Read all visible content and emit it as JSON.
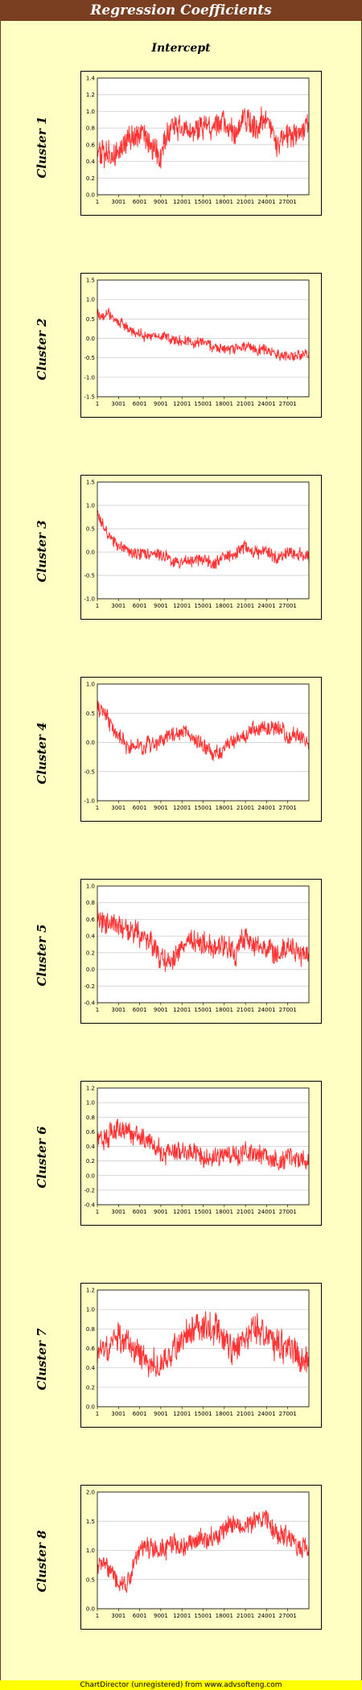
{
  "title": "Regression Coefficients",
  "subtitle": "Intercept",
  "footer": "ChartDirector (unregistered) from www.advsofteng.com",
  "colors": {
    "line": "#ff3333",
    "background": "#ffffc4",
    "title_bar": "#7a3e20",
    "footer": "#ffff00"
  },
  "chart_data": [
    {
      "type": "line",
      "label": "Cluster 1",
      "ylim": [
        0.0,
        1.4
      ],
      "y_ticks": [
        "0.0",
        "0.2",
        "0.4",
        "0.6",
        "0.8",
        "1.0",
        "1.2",
        "1.4"
      ],
      "x_ticks": [
        "1",
        "3001",
        "6001",
        "9001",
        "12001",
        "15001",
        "18001",
        "21001",
        "24001",
        "27001"
      ],
      "xlim": [
        1,
        30000
      ],
      "grid": "horizontal",
      "x": [
        1,
        1500,
        3000,
        4500,
        6000,
        7500,
        9000,
        10500,
        12000,
        13500,
        15000,
        16500,
        18000,
        19500,
        21000,
        22500,
        24000,
        25500,
        27000,
        28500,
        30000
      ],
      "y": [
        0.5,
        0.45,
        0.55,
        0.65,
        0.7,
        0.6,
        0.5,
        0.85,
        0.8,
        0.75,
        0.8,
        0.8,
        0.85,
        0.75,
        0.95,
        0.8,
        0.95,
        0.6,
        0.7,
        0.75,
        0.85
      ],
      "band": 0.16
    },
    {
      "type": "line",
      "label": "Cluster 2",
      "ylim": [
        -1.5,
        1.5
      ],
      "y_ticks": [
        "-1.5",
        "-1.0",
        "-0.5",
        "0.0",
        "0.5",
        "1.0",
        "1.5"
      ],
      "x_ticks": [
        "1",
        "3001",
        "6001",
        "9001",
        "12001",
        "15001",
        "18001",
        "21001",
        "24001",
        "27001"
      ],
      "xlim": [
        1,
        30000
      ],
      "grid": "horizontal",
      "x": [
        1,
        1500,
        3000,
        4500,
        6000,
        7500,
        9000,
        10500,
        12000,
        13500,
        15000,
        16500,
        18000,
        19500,
        21000,
        22500,
        24000,
        25500,
        27000,
        28500,
        30000
      ],
      "y": [
        0.6,
        0.65,
        0.4,
        0.25,
        0.1,
        0.05,
        0.05,
        0.0,
        -0.05,
        -0.1,
        -0.1,
        -0.2,
        -0.3,
        -0.3,
        -0.2,
        -0.3,
        -0.3,
        -0.45,
        -0.45,
        -0.45,
        -0.4
      ],
      "band": 0.14
    },
    {
      "type": "line",
      "label": "Cluster 3",
      "ylim": [
        -1.0,
        1.5
      ],
      "y_ticks": [
        "-1.0",
        "-0.5",
        "0.0",
        "0.5",
        "1.0",
        "1.5"
      ],
      "x_ticks": [
        "1",
        "3001",
        "6001",
        "9001",
        "12001",
        "15001",
        "18001",
        "21001",
        "24001",
        "27001"
      ],
      "xlim": [
        1,
        30000
      ],
      "grid": "horizontal",
      "x": [
        1,
        1500,
        3000,
        4500,
        6000,
        7500,
        9000,
        10500,
        12000,
        13500,
        15000,
        16500,
        18000,
        19500,
        21000,
        22500,
        24000,
        25500,
        27000,
        28500,
        30000
      ],
      "y": [
        0.8,
        0.35,
        0.15,
        0.0,
        0.0,
        -0.05,
        -0.05,
        -0.15,
        -0.25,
        -0.2,
        -0.15,
        -0.25,
        -0.1,
        -0.05,
        0.1,
        0.0,
        0.05,
        -0.15,
        0.05,
        -0.05,
        -0.1
      ],
      "band": 0.14
    },
    {
      "type": "line",
      "label": "Cluster 4",
      "ylim": [
        -1.0,
        1.0
      ],
      "y_ticks": [
        "-1.0",
        "-0.5",
        "0.0",
        "0.5",
        "1.0"
      ],
      "x_ticks": [
        "1",
        "3001",
        "6001",
        "9001",
        "12001",
        "15001",
        "18001",
        "21001",
        "24001",
        "27001"
      ],
      "xlim": [
        1,
        30000
      ],
      "grid": "horizontal",
      "x": [
        1,
        1500,
        3000,
        4500,
        6000,
        7500,
        9000,
        10500,
        12000,
        13500,
        15000,
        16500,
        18000,
        19500,
        21000,
        22500,
        24000,
        25500,
        27000,
        28500,
        30000
      ],
      "y": [
        0.6,
        0.4,
        0.1,
        -0.1,
        -0.05,
        0.0,
        0.05,
        0.15,
        0.2,
        0.05,
        -0.05,
        -0.25,
        -0.05,
        0.05,
        0.15,
        0.2,
        0.25,
        0.25,
        0.15,
        0.1,
        0.0
      ],
      "band": 0.14
    },
    {
      "type": "line",
      "label": "Cluster 5",
      "ylim": [
        -0.4,
        1.0
      ],
      "y_ticks": [
        "-0.4",
        "-0.2",
        "0.0",
        "0.2",
        "0.4",
        "0.6",
        "0.8",
        "1.0"
      ],
      "x_ticks": [
        "1",
        "3001",
        "6001",
        "9001",
        "12001",
        "15001",
        "18001",
        "21001",
        "24001",
        "27001"
      ],
      "xlim": [
        1,
        30000
      ],
      "grid": "horizontal",
      "x": [
        1,
        1500,
        3000,
        4500,
        6000,
        7500,
        9000,
        10500,
        12000,
        13500,
        15000,
        16500,
        18000,
        19500,
        21000,
        22500,
        24000,
        25500,
        27000,
        28500,
        30000
      ],
      "y": [
        0.65,
        0.55,
        0.55,
        0.45,
        0.4,
        0.35,
        0.1,
        0.15,
        0.3,
        0.3,
        0.35,
        0.25,
        0.3,
        0.2,
        0.35,
        0.3,
        0.25,
        0.2,
        0.25,
        0.2,
        0.2
      ],
      "band": 0.15
    },
    {
      "type": "line",
      "label": "Cluster 6",
      "ylim": [
        -0.4,
        1.2
      ],
      "y_ticks": [
        "-0.4",
        "-0.2",
        "0.0",
        "0.2",
        "0.4",
        "0.6",
        "0.8",
        "1.0",
        "1.2"
      ],
      "x_ticks": [
        "1",
        "3001",
        "6001",
        "9001",
        "12001",
        "15001",
        "18001",
        "21001",
        "24001",
        "27001"
      ],
      "xlim": [
        1,
        30000
      ],
      "grid": "horizontal",
      "x": [
        1,
        1500,
        3000,
        4500,
        6000,
        7500,
        9000,
        10500,
        12000,
        13500,
        15000,
        16500,
        18000,
        19500,
        21000,
        22500,
        24000,
        25500,
        27000,
        28500,
        30000
      ],
      "y": [
        0.45,
        0.55,
        0.7,
        0.6,
        0.5,
        0.45,
        0.3,
        0.3,
        0.35,
        0.3,
        0.25,
        0.3,
        0.3,
        0.25,
        0.35,
        0.3,
        0.3,
        0.2,
        0.25,
        0.2,
        0.15
      ],
      "band": 0.15
    },
    {
      "type": "line",
      "label": "Cluster 7",
      "ylim": [
        0.0,
        1.2
      ],
      "y_ticks": [
        "0.0",
        "0.2",
        "0.4",
        "0.6",
        "0.8",
        "1.0",
        "1.2"
      ],
      "x_ticks": [
        "1",
        "3001",
        "6001",
        "9001",
        "12001",
        "15001",
        "18001",
        "21001",
        "24001",
        "27001"
      ],
      "xlim": [
        1,
        30000
      ],
      "grid": "horizontal",
      "x": [
        1,
        1500,
        3000,
        4500,
        6000,
        7500,
        9000,
        10500,
        12000,
        13500,
        15000,
        16500,
        18000,
        19500,
        21000,
        22500,
        24000,
        25500,
        27000,
        28500,
        30000
      ],
      "y": [
        0.55,
        0.6,
        0.7,
        0.65,
        0.55,
        0.45,
        0.45,
        0.55,
        0.7,
        0.8,
        0.85,
        0.8,
        0.65,
        0.6,
        0.75,
        0.8,
        0.75,
        0.65,
        0.6,
        0.5,
        0.45
      ],
      "band": 0.16
    },
    {
      "type": "line",
      "label": "Cluster 8",
      "ylim": [
        0.0,
        2.0
      ],
      "y_ticks": [
        "0.0",
        "0.5",
        "1.0",
        "1.5",
        "2.0"
      ],
      "x_ticks": [
        "1",
        "3001",
        "6001",
        "9001",
        "12001",
        "15001",
        "18001",
        "21001",
        "24001",
        "27001"
      ],
      "xlim": [
        1,
        30000
      ],
      "grid": "horizontal",
      "x": [
        1,
        1500,
        3000,
        4500,
        6000,
        7500,
        9000,
        10500,
        12000,
        13500,
        15000,
        16500,
        18000,
        19500,
        21000,
        22500,
        24000,
        25500,
        27000,
        28500,
        30000
      ],
      "y": [
        0.8,
        0.75,
        0.35,
        0.5,
        1.0,
        1.05,
        1.0,
        1.1,
        1.05,
        1.15,
        1.15,
        1.2,
        1.35,
        1.45,
        1.45,
        1.5,
        1.5,
        1.3,
        1.25,
        1.05,
        1.0
      ],
      "band": 0.18
    }
  ]
}
